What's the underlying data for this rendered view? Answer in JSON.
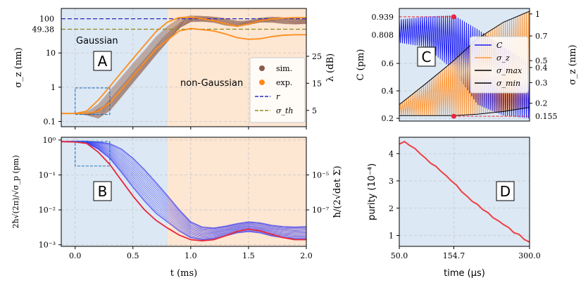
{
  "chart_data": [
    {
      "id": "A",
      "type": "line",
      "panel_label": "A",
      "xlim": [
        -0.12,
        2.0
      ],
      "ylabel": "σ_z (nm)",
      "yscale": "log",
      "ylim": [
        0.07,
        200
      ],
      "yticks": [
        {
          "v": 0.1,
          "t": "0.1"
        },
        {
          "v": 1,
          "t": "1"
        },
        {
          "v": 10,
          "t": "10"
        }
      ],
      "colored_ticks": [
        {
          "v": 100,
          "t": "100",
          "color": "#2b2bbd"
        },
        {
          "v": 49.38,
          "t": "49.38",
          "color": "#8c8c22"
        }
      ],
      "right_ylabel": "λ (dB)",
      "right_ticks": [
        {
          "v": 0.21,
          "t": "5"
        },
        {
          "v": 1.3,
          "t": "15"
        },
        {
          "v": 8.0,
          "t": "25"
        }
      ],
      "regions": [
        {
          "name": "Gaussian",
          "x0": -0.12,
          "x1": 0.8,
          "color": "#dce8f4"
        },
        {
          "name": "non-Gaussian",
          "x0": 0.8,
          "x1": 2.0,
          "color": "#fde6d2"
        }
      ],
      "region_labels": [
        "Gaussian",
        "non-Gaussian"
      ],
      "hlines": [
        {
          "name": "r",
          "y": 100,
          "color": "#2b2bbd"
        },
        {
          "name": "σ_th",
          "y": 49.38,
          "color": "#8c8c22"
        }
      ],
      "sim_band": {
        "lower": [
          [
            -0.12,
            0.17
          ],
          [
            0.0,
            0.17
          ],
          [
            0.1,
            0.15
          ],
          [
            0.2,
            0.12
          ],
          [
            0.3,
            0.2
          ],
          [
            0.4,
            0.5
          ],
          [
            0.5,
            1.3
          ],
          [
            0.6,
            3.3
          ],
          [
            0.7,
            8.5
          ],
          [
            0.8,
            21
          ],
          [
            0.9,
            52
          ],
          [
            1.0,
            80
          ],
          [
            1.1,
            82
          ],
          [
            1.2,
            76
          ],
          [
            1.3,
            63
          ],
          [
            1.4,
            58
          ],
          [
            1.5,
            66
          ],
          [
            1.6,
            78
          ],
          [
            1.7,
            77
          ],
          [
            1.8,
            70
          ],
          [
            1.9,
            68
          ],
          [
            2.0,
            70
          ]
        ],
        "upper": [
          [
            -0.12,
            0.17
          ],
          [
            0.0,
            0.17
          ],
          [
            0.1,
            0.19
          ],
          [
            0.2,
            0.32
          ],
          [
            0.3,
            0.8
          ],
          [
            0.4,
            2.0
          ],
          [
            0.5,
            5.0
          ],
          [
            0.6,
            12
          ],
          [
            0.7,
            30
          ],
          [
            0.8,
            62
          ],
          [
            0.9,
            105
          ],
          [
            1.0,
            125
          ],
          [
            1.1,
            120
          ],
          [
            1.2,
            112
          ],
          [
            1.3,
            98
          ],
          [
            1.4,
            85
          ],
          [
            1.5,
            92
          ],
          [
            1.6,
            108
          ],
          [
            1.7,
            115
          ],
          [
            1.8,
            108
          ],
          [
            1.9,
            100
          ],
          [
            2.0,
            102
          ]
        ]
      },
      "series": [
        {
          "name": "exp. mid",
          "color": "#ff8c1a",
          "values": [
            [
              -0.12,
              0.17
            ],
            [
              0.0,
              0.17
            ],
            [
              0.1,
              0.2
            ],
            [
              0.2,
              0.42
            ],
            [
              0.3,
              1.05
            ],
            [
              0.4,
              2.7
            ],
            [
              0.5,
              6.8
            ],
            [
              0.6,
              17
            ],
            [
              0.7,
              42
            ],
            [
              0.8,
              80
            ],
            [
              0.9,
              108
            ],
            [
              1.0,
              112
            ],
            [
              1.1,
              100
            ],
            [
              1.2,
              88
            ],
            [
              1.3,
              72
            ],
            [
              1.4,
              60
            ],
            [
              1.5,
              70
            ],
            [
              1.6,
              88
            ],
            [
              1.7,
              98
            ],
            [
              1.8,
              104
            ],
            [
              1.9,
              108
            ],
            [
              2.0,
              108
            ]
          ]
        },
        {
          "name": "exp. low",
          "color": "#ff8c1a",
          "values": [
            [
              -0.12,
              0.17
            ],
            [
              0.0,
              0.17
            ],
            [
              0.1,
              0.17
            ],
            [
              0.2,
              0.2
            ],
            [
              0.3,
              0.35
            ],
            [
              0.4,
              0.85
            ],
            [
              0.5,
              2.1
            ],
            [
              0.6,
              5.2
            ],
            [
              0.7,
              13
            ],
            [
              0.8,
              24
            ],
            [
              0.9,
              44
            ],
            [
              1.0,
              52
            ],
            [
              1.1,
              48
            ],
            [
              1.2,
              44
            ],
            [
              1.3,
              36
            ],
            [
              1.4,
              28
            ],
            [
              1.5,
              25
            ],
            [
              1.6,
              26
            ],
            [
              1.7,
              30
            ],
            [
              1.8,
              33
            ],
            [
              1.9,
              34
            ],
            [
              2.0,
              34
            ]
          ]
        }
      ],
      "legend": [
        {
          "label": "sim.",
          "color": "#8b5a4c",
          "marker": "dot"
        },
        {
          "label": "exp.",
          "color": "#ff8c1a",
          "marker": "dot"
        },
        {
          "label": "r",
          "color": "#2b2bbd",
          "marker": "dash"
        },
        {
          "label": "σ_th",
          "color": "#8c8c22",
          "marker": "dash"
        }
      ]
    },
    {
      "id": "B",
      "type": "line",
      "panel_label": "B",
      "xlim": [
        -0.12,
        2.0
      ],
      "xlabel": "t (ms)",
      "xticks": [
        {
          "v": 0.0,
          "t": "0.0"
        },
        {
          "v": 0.5,
          "t": "0.5"
        },
        {
          "v": 1.0,
          "t": "1.0"
        },
        {
          "v": 1.5,
          "t": "1.5"
        },
        {
          "v": 2.0,
          "t": "2.0"
        }
      ],
      "yscale": "log",
      "ylim": [
        0.0009,
        1.2
      ],
      "ylabel": "2ħ√(2π)/√σ_p (pm)",
      "yticks": [
        {
          "v": 1,
          "t": "10⁰"
        },
        {
          "v": 0.1,
          "t": "10⁻¹"
        },
        {
          "v": 0.01,
          "t": "10⁻²"
        },
        {
          "v": 0.001,
          "t": "10⁻³"
        }
      ],
      "right_ylabel": "ħ/(2√det Σ)",
      "right_ticks": [
        {
          "v": 0.1,
          "t": "10⁻⁵"
        },
        {
          "v": 0.01,
          "t": "10⁻⁷"
        }
      ],
      "regions": [
        {
          "x0": -0.12,
          "x1": 0.8,
          "color": "#dce8f4"
        },
        {
          "x0": 0.8,
          "x1": 2.0,
          "color": "#fde6d2"
        }
      ],
      "band": {
        "lower": [
          [
            -0.12,
            0.9
          ],
          [
            0.0,
            0.88
          ],
          [
            0.1,
            0.82
          ],
          [
            0.2,
            0.55
          ],
          [
            0.3,
            0.3
          ],
          [
            0.4,
            0.12
          ],
          [
            0.5,
            0.045
          ],
          [
            0.6,
            0.018
          ],
          [
            0.7,
            0.008
          ],
          [
            0.8,
            0.0045
          ],
          [
            0.9,
            0.0025
          ],
          [
            1.0,
            0.0016
          ],
          [
            1.1,
            0.0014
          ],
          [
            1.2,
            0.0015
          ],
          [
            1.3,
            0.0018
          ],
          [
            1.4,
            0.0022
          ],
          [
            1.5,
            0.0024
          ],
          [
            1.6,
            0.0022
          ],
          [
            1.7,
            0.0018
          ],
          [
            1.8,
            0.0016
          ],
          [
            1.9,
            0.0015
          ],
          [
            2.0,
            0.0015
          ]
        ],
        "upper": [
          [
            -0.12,
            0.9
          ],
          [
            0.0,
            0.92
          ],
          [
            0.1,
            0.92
          ],
          [
            0.2,
            0.88
          ],
          [
            0.3,
            0.78
          ],
          [
            0.4,
            0.55
          ],
          [
            0.5,
            0.3
          ],
          [
            0.6,
            0.14
          ],
          [
            0.7,
            0.06
          ],
          [
            0.8,
            0.025
          ],
          [
            0.9,
            0.01
          ],
          [
            1.0,
            0.0045
          ],
          [
            1.1,
            0.0032
          ],
          [
            1.2,
            0.003
          ],
          [
            1.3,
            0.0034
          ],
          [
            1.4,
            0.004
          ],
          [
            1.5,
            0.0045
          ],
          [
            1.6,
            0.0042
          ],
          [
            1.7,
            0.0036
          ],
          [
            1.8,
            0.0033
          ],
          [
            1.9,
            0.0032
          ],
          [
            2.0,
            0.0033
          ]
        ]
      },
      "series": [
        {
          "name": "ħ/(2√det Σ)",
          "color": "#e8263a",
          "values": [
            [
              -0.12,
              0.9
            ],
            [
              0.0,
              0.88
            ],
            [
              0.1,
              0.8
            ],
            [
              0.2,
              0.45
            ],
            [
              0.3,
              0.2
            ],
            [
              0.4,
              0.07
            ],
            [
              0.5,
              0.025
            ],
            [
              0.6,
              0.01
            ],
            [
              0.7,
              0.005
            ],
            [
              0.8,
              0.003
            ],
            [
              0.9,
              0.0019
            ],
            [
              1.0,
              0.0014
            ],
            [
              1.1,
              0.0013
            ],
            [
              1.2,
              0.0014
            ],
            [
              1.3,
              0.0018
            ],
            [
              1.4,
              0.0024
            ],
            [
              1.5,
              0.0028
            ],
            [
              1.6,
              0.0025
            ],
            [
              1.7,
              0.002
            ],
            [
              1.8,
              0.0016
            ],
            [
              1.9,
              0.0014
            ],
            [
              2.0,
              0.0014
            ]
          ]
        }
      ]
    },
    {
      "id": "C",
      "type": "line",
      "panel_label": "C",
      "xlim": [
        50.0,
        300.0
      ],
      "ylabel": "C (pm)",
      "ylim": [
        0.18,
        1.0
      ],
      "yticks": [
        {
          "v": 0.2,
          "t": "0.2"
        },
        {
          "v": 0.4,
          "t": "0.4"
        },
        {
          "v": 0.6,
          "t": "0.6"
        }
      ],
      "colored_ticks": [
        {
          "v": 0.939,
          "t": "0.939",
          "color": "#e8263a"
        },
        {
          "v": 0.808,
          "t": "0.808",
          "color": "#1a1af0"
        }
      ],
      "right_ylabel": "σ_z (nm)",
      "right_ticks": [
        {
          "v": 0.96,
          "t": "1"
        },
        {
          "v": 0.8,
          "t": "0.7"
        },
        {
          "v": 0.62,
          "t": "0.5"
        },
        {
          "v": 0.57,
          "t": "0.4"
        },
        {
          "v": 0.46,
          "t": "0.3"
        },
        {
          "v": 0.31,
          "t": "0.2"
        }
      ],
      "right_colored_ticks": [
        {
          "v": 0.215,
          "t": "0.155",
          "color": "#e8263a"
        }
      ],
      "markers": [
        {
          "x": 154.7,
          "y": 0.939,
          "color": "#e8263a"
        },
        {
          "x": 154.7,
          "y": 0.215,
          "color": "#e8263a"
        }
      ],
      "C_band": [
        [
          50,
          0.75,
          0.92
        ],
        [
          100,
          0.72,
          0.94
        ],
        [
          154.7,
          0.55,
          0.95
        ],
        [
          200,
          0.3,
          0.85
        ],
        [
          250,
          0.22,
          0.72
        ],
        [
          300,
          0.2,
          0.6
        ]
      ],
      "sz_band": [
        [
          50,
          0.22,
          0.3
        ],
        [
          100,
          0.22,
          0.45
        ],
        [
          154.7,
          0.22,
          0.62
        ],
        [
          200,
          0.23,
          0.78
        ],
        [
          250,
          0.25,
          0.9
        ],
        [
          300,
          0.28,
          0.98
        ]
      ],
      "legend": [
        {
          "label": "C",
          "color": "#1a1af0"
        },
        {
          "label": "σ_z",
          "color": "#ff9a3c"
        },
        {
          "label": "σ_max",
          "color": "#000000"
        },
        {
          "label": "σ_min",
          "color": "#000000"
        }
      ]
    },
    {
      "id": "D",
      "type": "line",
      "panel_label": "D",
      "xlim": [
        50.0,
        300.0
      ],
      "xlabel": "time (μs)",
      "xticks": [
        {
          "v": 50.0,
          "t": "50.0"
        },
        {
          "v": 300.0,
          "t": "300.0"
        }
      ],
      "colored_xticks": [
        {
          "v": 154.7,
          "t": "154.7",
          "color": "#e8263a"
        }
      ],
      "ylabel": "purity (10⁻⁴)",
      "ylim": [
        0.6,
        4.6
      ],
      "yticks": [
        {
          "v": 1,
          "t": "1"
        },
        {
          "v": 2,
          "t": "2"
        },
        {
          "v": 3,
          "t": "3"
        },
        {
          "v": 4,
          "t": "4"
        }
      ],
      "series": [
        {
          "name": "purity",
          "color": "#f04040",
          "values": [
            [
              50,
              4.35
            ],
            [
              60,
              4.4
            ],
            [
              70,
              4.3
            ],
            [
              80,
              4.15
            ],
            [
              90,
              4.0
            ],
            [
              100,
              3.8
            ],
            [
              110,
              3.65
            ],
            [
              120,
              3.5
            ],
            [
              130,
              3.35
            ],
            [
              140,
              3.15
            ],
            [
              150,
              3.0
            ],
            [
              160,
              2.8
            ],
            [
              170,
              2.6
            ],
            [
              180,
              2.4
            ],
            [
              190,
              2.25
            ],
            [
              200,
              2.1
            ],
            [
              210,
              1.95
            ],
            [
              220,
              1.8
            ],
            [
              230,
              1.65
            ],
            [
              240,
              1.5
            ],
            [
              250,
              1.4
            ],
            [
              260,
              1.25
            ],
            [
              270,
              1.1
            ],
            [
              280,
              1.0
            ],
            [
              290,
              0.85
            ],
            [
              300,
              0.72
            ]
          ]
        }
      ]
    }
  ]
}
